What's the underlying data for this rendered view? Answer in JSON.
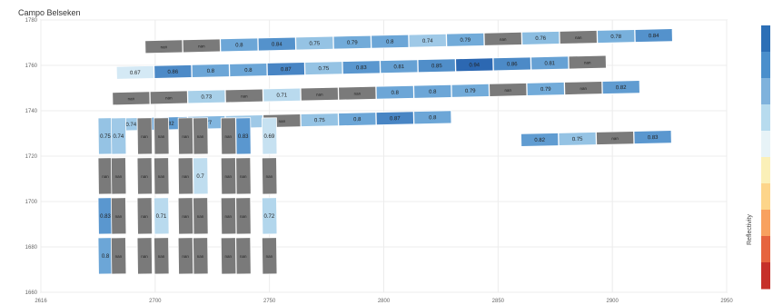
{
  "chart_data": {
    "type": "heatmap",
    "title": "Campo Belseken",
    "xlabel": "",
    "ylabel": "",
    "xlim": [
      2615,
      2850
    ],
    "ylim": [
      1680,
      1780
    ],
    "x_ticks": [
      "2616",
      "2700",
      "2750",
      "2800",
      "2850",
      "2900",
      "2950"
    ],
    "y_ticks": [
      "1780",
      "1760",
      "1740",
      "1720",
      "1700",
      "1680",
      "1660"
    ],
    "colorbar": {
      "label": "Reflectivity",
      "colors": [
        "#2c6fb6",
        "#4a8fcc",
        "#7fb2dc",
        "#b7dbee",
        "#e7f3f7",
        "#fbf0b8",
        "#fdd58a",
        "#f8a160",
        "#e6643f",
        "#c6302a"
      ]
    },
    "legend": "right",
    "nan_color": "#7a7a7a",
    "rows_top": [
      {
        "y": 1772,
        "x0": 2666,
        "cells": [
          "nan",
          "nan",
          "0.8",
          "0.84",
          "0.75",
          "0.79",
          "0.8",
          "0.74",
          "0.79",
          "nan",
          "0.76",
          "nan",
          "0.78",
          "0.84"
        ]
      },
      {
        "y": 1762,
        "x0": 2652,
        "cells": [
          "0.67",
          "0.86",
          "0.8",
          "0.8",
          "0.87",
          "0.75",
          "0.83",
          "0.81",
          "0.85",
          "0.94",
          "0.86",
          "0.81",
          "nan"
        ]
      },
      {
        "y": 1752,
        "x0": 2650,
        "cells": [
          "nan",
          "nan",
          "0.73",
          "nan",
          "0.71",
          "nan",
          "nan",
          "0.8",
          "0.8",
          "0.79",
          "nan",
          "0.79",
          "nan",
          "0.82"
        ]
      },
      {
        "y": 1742,
        "x0": 2650,
        "cells": [
          "0.74",
          "0.82",
          "0.77",
          "0.74",
          "nan",
          "0.75",
          "0.8",
          "0.87",
          "0.8"
        ]
      },
      {
        "y": 1736,
        "x0": 2850,
        "cells": [
          "0.82",
          "0.75",
          "nan",
          "0.83"
        ]
      }
    ],
    "columns_bottom": [
      {
        "x": 2622,
        "cells": [
          "0.75",
          "nan",
          "0.83",
          "0.8"
        ]
      },
      {
        "x": 2629,
        "cells": [
          "0.74",
          "nan",
          "nan",
          "nan"
        ]
      },
      {
        "x": 2643,
        "cells": [
          "nan",
          "nan",
          "nan",
          "nan"
        ]
      },
      {
        "x": 2652,
        "cells": [
          "nan",
          "nan",
          "0.71",
          "nan"
        ]
      },
      {
        "x": 2665,
        "cells": [
          "nan",
          "nan",
          "nan",
          "nan"
        ]
      },
      {
        "x": 2673,
        "cells": [
          "nan",
          "0.7",
          "nan",
          "nan"
        ]
      },
      {
        "x": 2688,
        "cells": [
          "nan",
          "nan",
          "nan",
          "nan"
        ]
      },
      {
        "x": 2696,
        "cells": [
          "0.83",
          "nan",
          "nan",
          "nan"
        ]
      },
      {
        "x": 2710,
        "cells": [
          "0.69",
          "nan",
          "0.72",
          "nan"
        ]
      }
    ]
  }
}
